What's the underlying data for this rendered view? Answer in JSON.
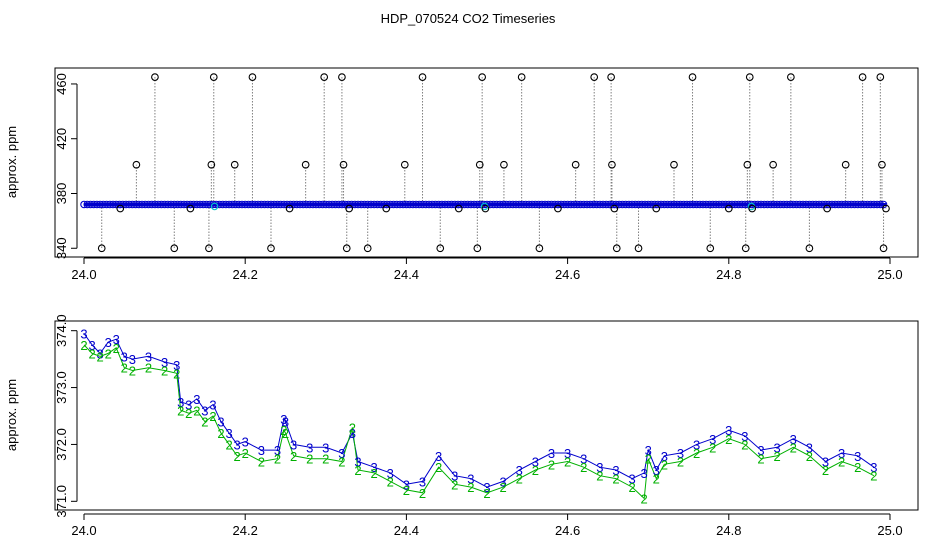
{
  "title": "HDP_070524  CO2 Timeseries",
  "colors": {
    "spike_marker": "#000000",
    "spike_line": "#808080",
    "series_blue": "#0000cc",
    "series_cyan": "#00c8c8",
    "series_green": "#00b000"
  },
  "chart_data": [
    {
      "type": "scatter",
      "ylabel": "approx. ppm",
      "xlim": [
        24.0,
        25.0
      ],
      "ylim": [
        338,
        468
      ],
      "x_ticks": [
        "24.0",
        "24.2",
        "24.4",
        "24.6",
        "24.8",
        "25.0"
      ],
      "y_ticks": [
        "340",
        "380",
        "420",
        "460"
      ],
      "baseline_ppm": 372,
      "spikes": [
        {
          "x": 24.022,
          "y": 340
        },
        {
          "x": 24.045,
          "y": 369
        },
        {
          "x": 24.065,
          "y": 401
        },
        {
          "x": 24.088,
          "y": 465
        },
        {
          "x": 24.112,
          "y": 340
        },
        {
          "x": 24.132,
          "y": 369
        },
        {
          "x": 24.155,
          "y": 340
        },
        {
          "x": 24.158,
          "y": 401
        },
        {
          "x": 24.161,
          "y": 465
        },
        {
          "x": 24.187,
          "y": 401
        },
        {
          "x": 24.209,
          "y": 465
        },
        {
          "x": 24.232,
          "y": 340
        },
        {
          "x": 24.255,
          "y": 369
        },
        {
          "x": 24.275,
          "y": 401
        },
        {
          "x": 24.298,
          "y": 465
        },
        {
          "x": 24.32,
          "y": 465
        },
        {
          "x": 24.322,
          "y": 401
        },
        {
          "x": 24.326,
          "y": 340
        },
        {
          "x": 24.329,
          "y": 369
        },
        {
          "x": 24.352,
          "y": 340
        },
        {
          "x": 24.375,
          "y": 369
        },
        {
          "x": 24.398,
          "y": 401
        },
        {
          "x": 24.42,
          "y": 465
        },
        {
          "x": 24.442,
          "y": 340
        },
        {
          "x": 24.465,
          "y": 369
        },
        {
          "x": 24.488,
          "y": 340
        },
        {
          "x": 24.491,
          "y": 401
        },
        {
          "x": 24.494,
          "y": 465
        },
        {
          "x": 24.498,
          "y": 369
        },
        {
          "x": 24.521,
          "y": 401
        },
        {
          "x": 24.543,
          "y": 465
        },
        {
          "x": 24.565,
          "y": 340
        },
        {
          "x": 24.588,
          "y": 369
        },
        {
          "x": 24.61,
          "y": 401
        },
        {
          "x": 24.633,
          "y": 465
        },
        {
          "x": 24.654,
          "y": 465
        },
        {
          "x": 24.655,
          "y": 401
        },
        {
          "x": 24.658,
          "y": 369
        },
        {
          "x": 24.661,
          "y": 340
        },
        {
          "x": 24.688,
          "y": 340
        },
        {
          "x": 24.71,
          "y": 369
        },
        {
          "x": 24.732,
          "y": 401
        },
        {
          "x": 24.755,
          "y": 465
        },
        {
          "x": 24.777,
          "y": 340
        },
        {
          "x": 24.8,
          "y": 369
        },
        {
          "x": 24.821,
          "y": 340
        },
        {
          "x": 24.823,
          "y": 401
        },
        {
          "x": 24.826,
          "y": 465
        },
        {
          "x": 24.829,
          "y": 369
        },
        {
          "x": 24.855,
          "y": 401
        },
        {
          "x": 24.877,
          "y": 465
        },
        {
          "x": 24.9,
          "y": 340
        },
        {
          "x": 24.922,
          "y": 369
        },
        {
          "x": 24.945,
          "y": 401
        },
        {
          "x": 24.966,
          "y": 465
        },
        {
          "x": 24.988,
          "y": 465
        },
        {
          "x": 24.99,
          "y": 401
        },
        {
          "x": 24.992,
          "y": 340
        },
        {
          "x": 24.995,
          "y": 369
        }
      ]
    },
    {
      "type": "line",
      "ylabel": "approx. ppm",
      "xlim": [
        24.0,
        25.0
      ],
      "ylim": [
        370.9,
        374.1
      ],
      "x_ticks": [
        "24.0",
        "24.2",
        "24.4",
        "24.6",
        "24.8",
        "25.0"
      ],
      "y_ticks": [
        "371.0",
        "372.0",
        "373.0",
        "374.0"
      ],
      "series": [
        {
          "marker": "3",
          "x": [
            24.0,
            24.01,
            24.02,
            24.03,
            24.04,
            24.05,
            24.06,
            24.08,
            24.1,
            24.115,
            24.12,
            24.13,
            24.14,
            24.15,
            24.16,
            24.17,
            24.18,
            24.19,
            24.2,
            24.22,
            24.24,
            24.248,
            24.25,
            24.26,
            24.28,
            24.3,
            24.32,
            24.333,
            24.34,
            24.36,
            24.38,
            24.4,
            24.42,
            24.44,
            24.46,
            24.48,
            24.5,
            24.52,
            24.54,
            24.56,
            24.58,
            24.6,
            24.62,
            24.64,
            24.66,
            24.68,
            24.695,
            24.7,
            24.71,
            24.72,
            24.74,
            24.76,
            24.78,
            24.8,
            24.82,
            24.84,
            24.86,
            24.88,
            24.9,
            24.92,
            24.94,
            24.96,
            24.98
          ],
          "y": [
            373.95,
            373.75,
            373.6,
            373.8,
            373.85,
            373.55,
            373.5,
            373.55,
            373.45,
            373.4,
            372.75,
            372.7,
            372.8,
            372.6,
            372.7,
            372.4,
            372.2,
            372.0,
            372.05,
            371.9,
            371.9,
            372.45,
            372.4,
            372.0,
            371.95,
            371.95,
            371.85,
            372.2,
            371.7,
            371.6,
            371.5,
            371.3,
            371.35,
            371.8,
            371.45,
            371.4,
            371.25,
            371.35,
            371.55,
            371.7,
            371.85,
            371.85,
            371.75,
            371.6,
            371.55,
            371.4,
            371.5,
            371.9,
            371.55,
            371.8,
            371.85,
            372.0,
            372.1,
            372.25,
            372.15,
            371.9,
            371.95,
            372.1,
            371.95,
            371.7,
            371.85,
            371.8,
            371.6
          ]
        },
        {
          "marker": "2",
          "x": [
            24.0,
            24.01,
            24.02,
            24.03,
            24.04,
            24.05,
            24.06,
            24.08,
            24.1,
            24.115,
            24.12,
            24.13,
            24.14,
            24.15,
            24.16,
            24.17,
            24.18,
            24.19,
            24.2,
            24.22,
            24.24,
            24.248,
            24.25,
            24.26,
            24.28,
            24.3,
            24.32,
            24.333,
            24.34,
            24.36,
            24.38,
            24.4,
            24.42,
            24.44,
            24.46,
            24.48,
            24.5,
            24.52,
            24.54,
            24.56,
            24.58,
            24.6,
            24.62,
            24.64,
            24.66,
            24.68,
            24.695,
            24.7,
            24.71,
            24.72,
            24.74,
            24.76,
            24.78,
            24.8,
            24.82,
            24.84,
            24.86,
            24.88,
            24.9,
            24.92,
            24.94,
            24.96,
            24.98
          ],
          "y": [
            373.75,
            373.6,
            373.55,
            373.6,
            373.7,
            373.35,
            373.3,
            373.35,
            373.3,
            373.25,
            372.6,
            372.55,
            372.6,
            372.4,
            372.5,
            372.2,
            372.0,
            371.8,
            371.85,
            371.7,
            371.75,
            372.25,
            372.2,
            371.8,
            371.75,
            371.75,
            371.7,
            372.3,
            371.55,
            371.5,
            371.35,
            371.2,
            371.15,
            371.6,
            371.3,
            371.25,
            371.15,
            371.25,
            371.4,
            371.55,
            371.65,
            371.7,
            371.6,
            371.45,
            371.4,
            371.25,
            371.05,
            371.75,
            371.4,
            371.65,
            371.7,
            371.85,
            371.95,
            372.1,
            372.0,
            371.75,
            371.8,
            371.95,
            371.8,
            371.55,
            371.7,
            371.6,
            371.45
          ]
        }
      ]
    }
  ]
}
